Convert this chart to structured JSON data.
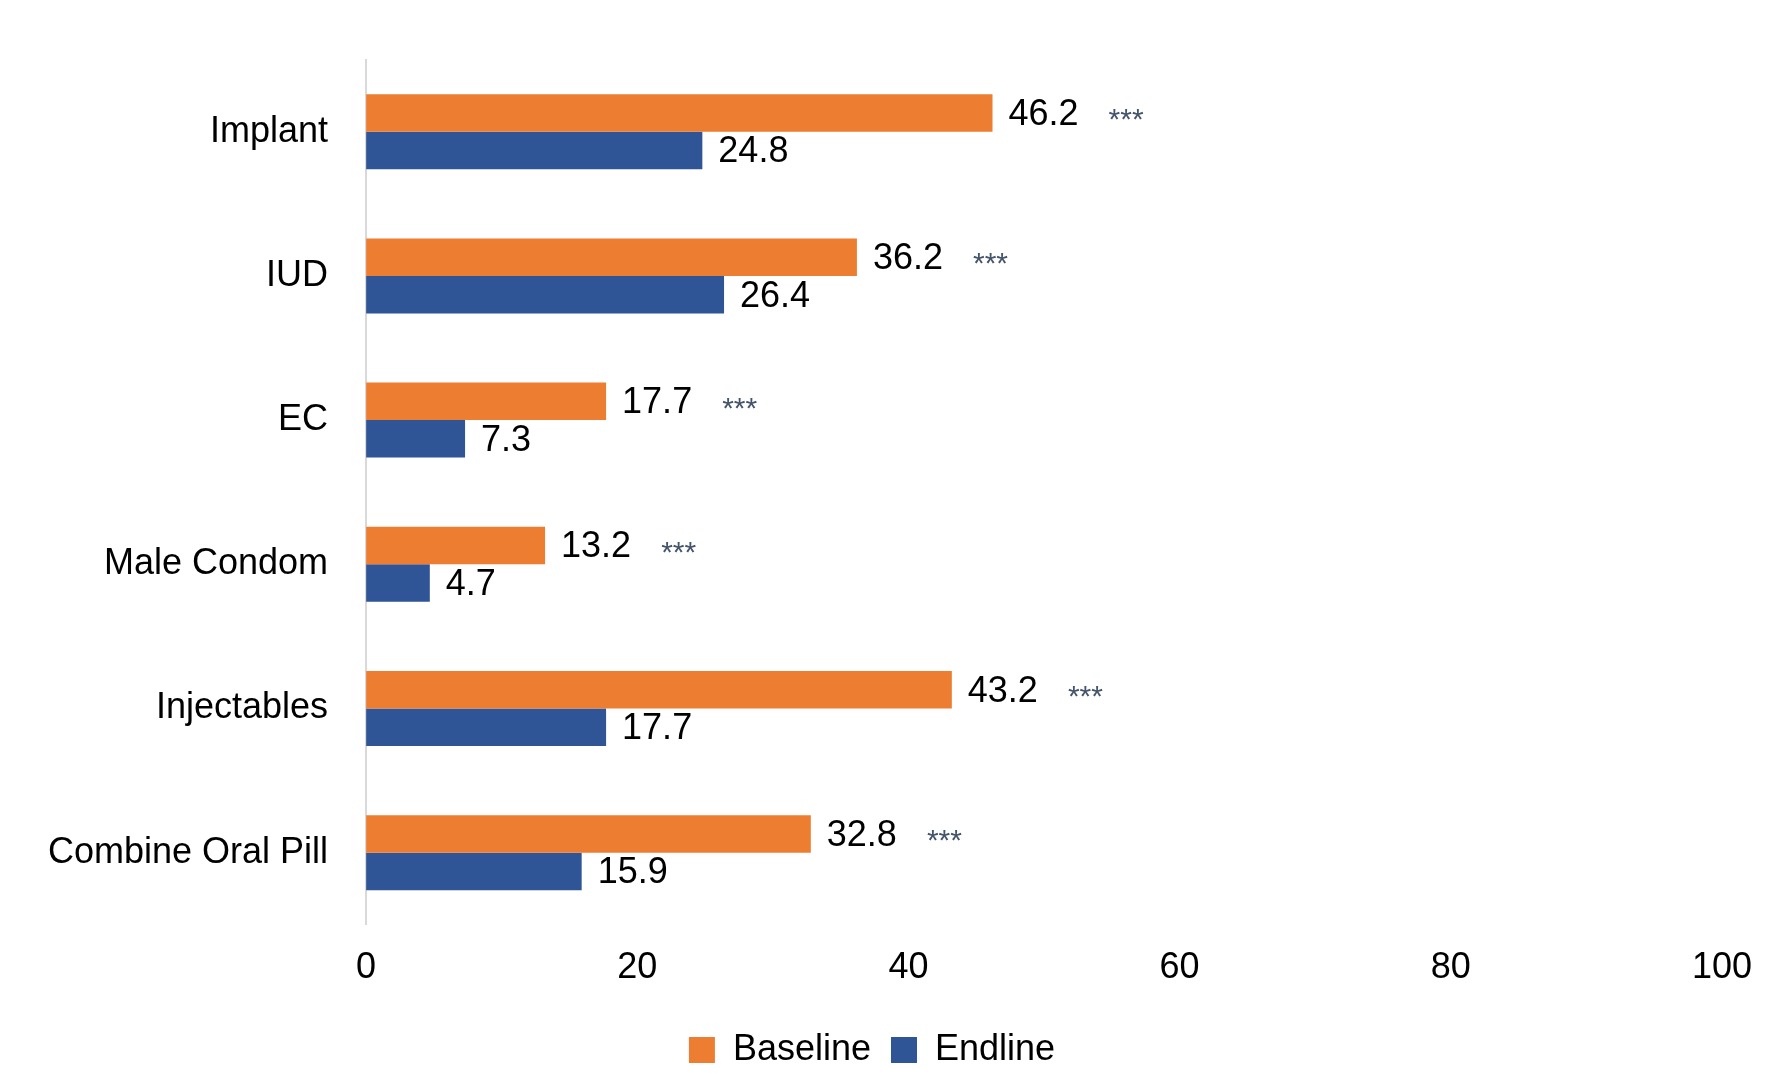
{
  "chart_data": {
    "type": "bar",
    "orientation": "horizontal",
    "categories": [
      "Implant",
      "IUD",
      "EC",
      "Male Condom",
      "Injectables",
      "Combine Oral Pill"
    ],
    "series": [
      {
        "name": "Baseline",
        "color": "#ed7d31",
        "values": [
          46.2,
          36.2,
          17.7,
          13.2,
          43.2,
          32.8
        ]
      },
      {
        "name": "Endline",
        "color": "#2f5597",
        "values": [
          24.8,
          26.4,
          7.3,
          4.7,
          17.7,
          15.9
        ]
      }
    ],
    "xlim": [
      0,
      100
    ],
    "xticks": [
      0,
      20,
      40,
      60,
      80,
      100
    ],
    "grid": false,
    "legend": "bottom",
    "data_labels": true,
    "annotations": [
      "***",
      "***",
      "***",
      "***",
      "***",
      "***"
    ]
  }
}
